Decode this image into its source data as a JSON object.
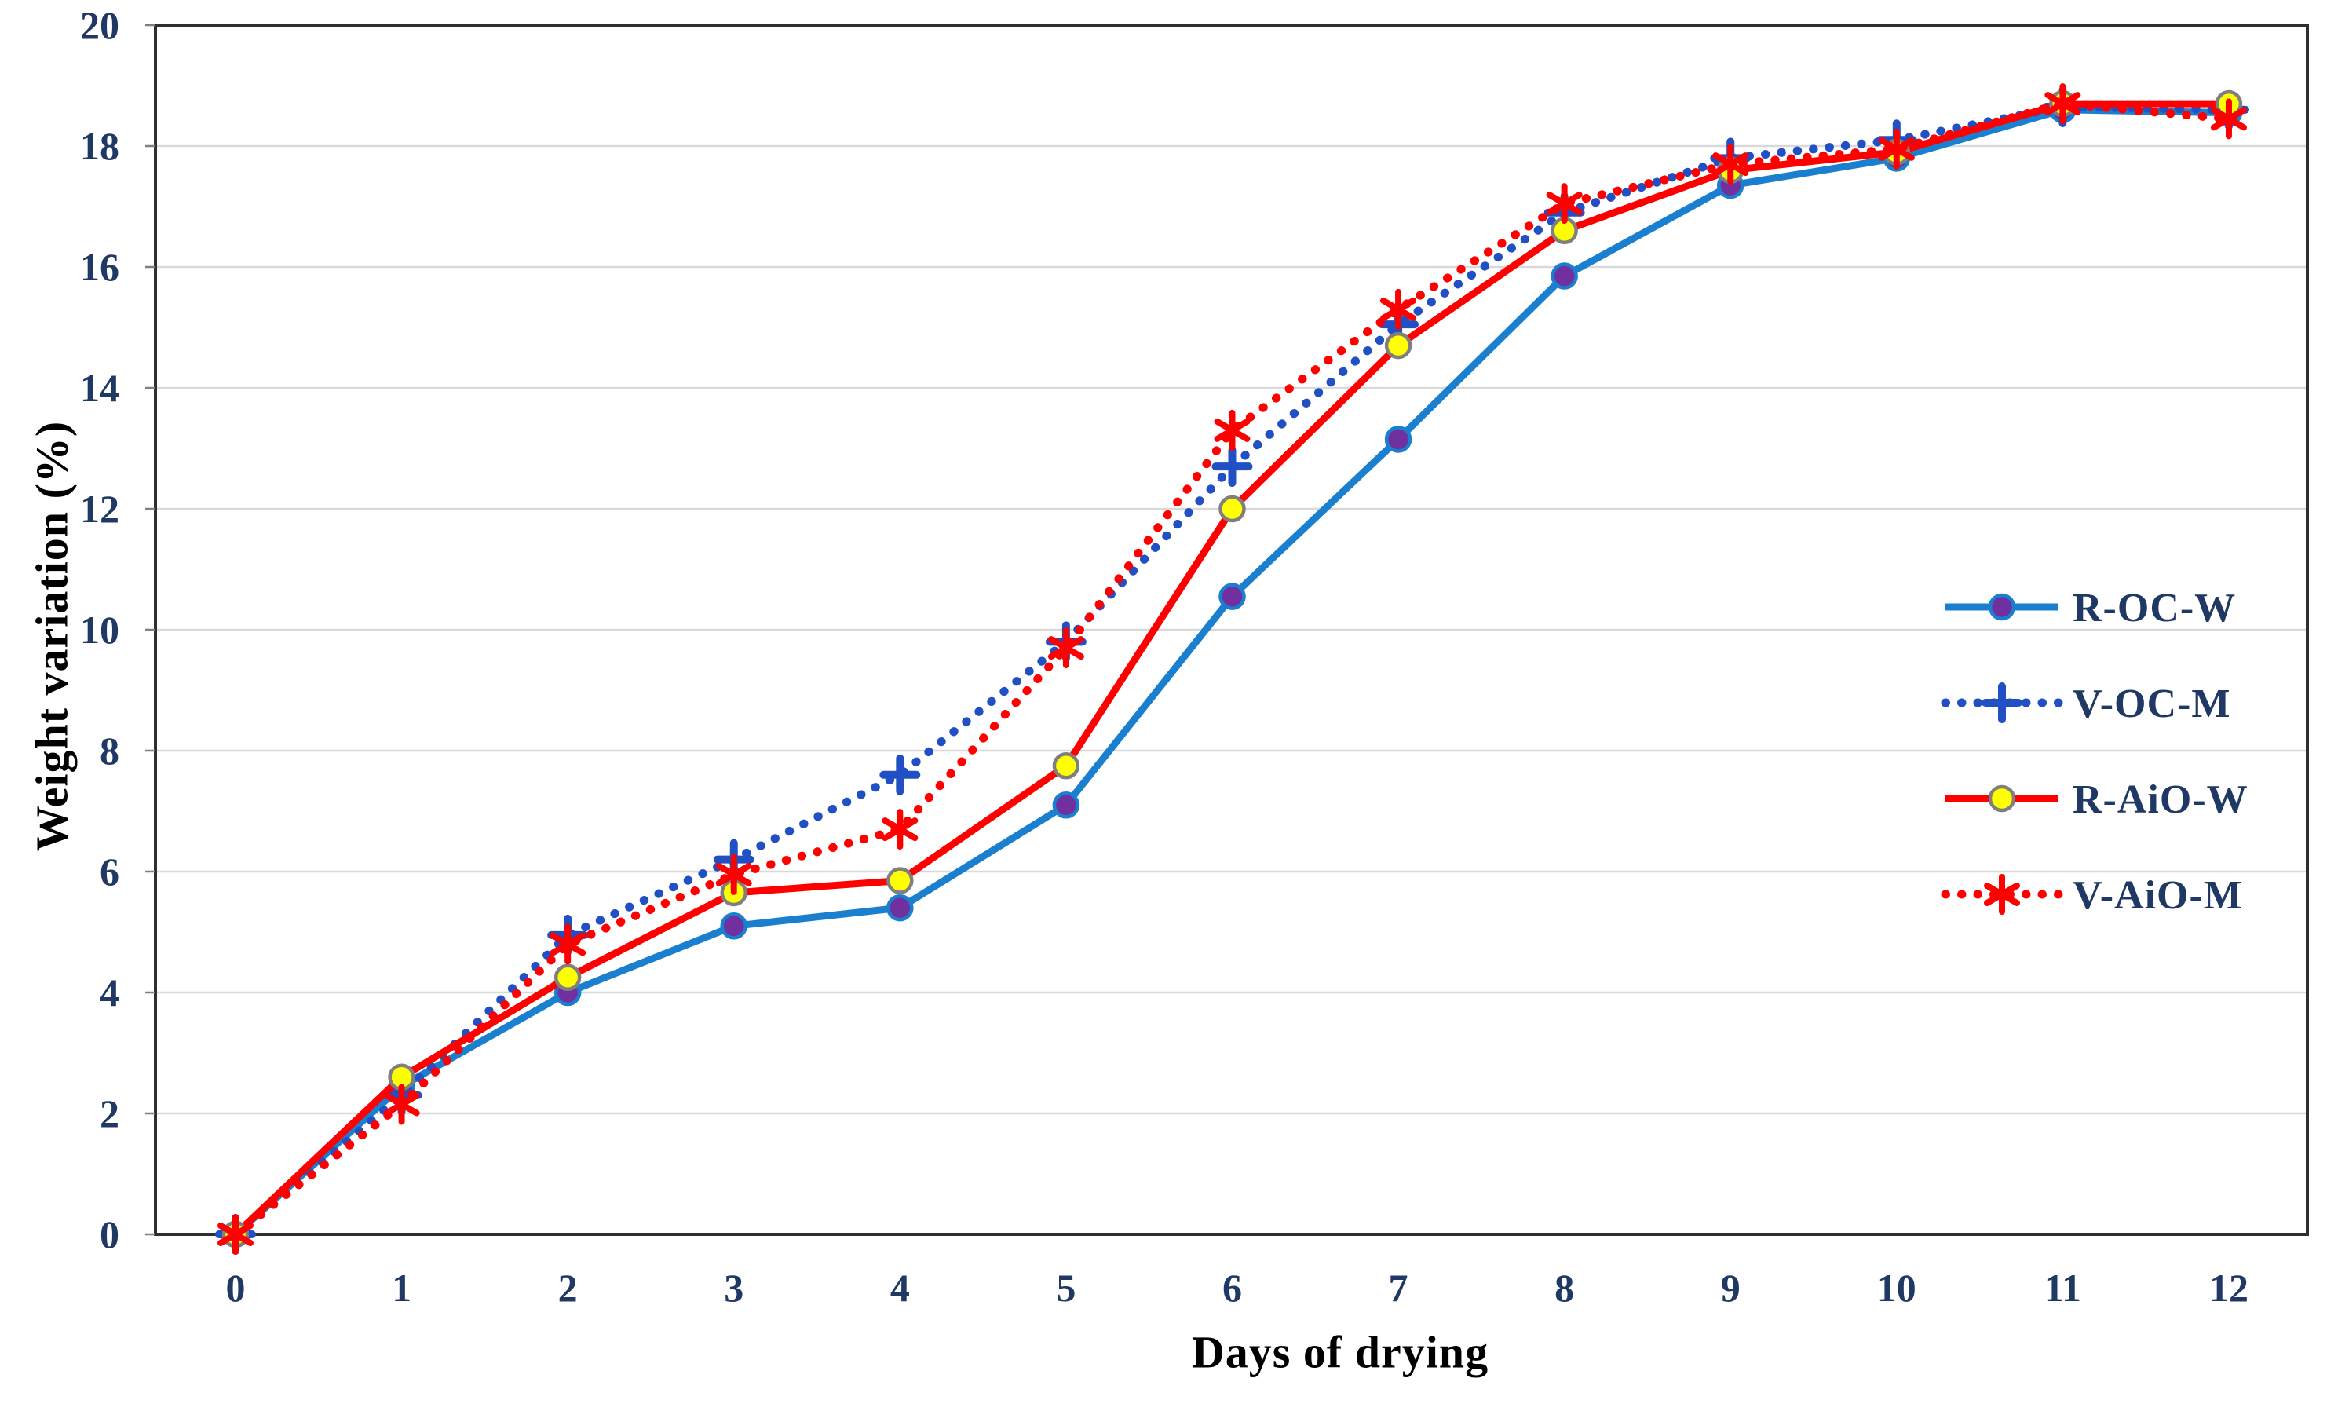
{
  "chart_data": {
    "type": "line",
    "title": "",
    "xlabel": "Days of drying",
    "ylabel": "Weight variation (%)",
    "x": [
      0,
      1,
      2,
      3,
      4,
      5,
      6,
      7,
      8,
      9,
      10,
      11,
      12
    ],
    "x_tick_labels": [
      "0",
      "1",
      "2",
      "3",
      "4",
      "5",
      "6",
      "7",
      "8",
      "9",
      "10",
      "11",
      "12"
    ],
    "y_ticks": [
      0,
      2,
      4,
      6,
      8,
      10,
      12,
      14,
      16,
      18,
      20
    ],
    "ylim": [
      0,
      20
    ],
    "grid": "horizontal",
    "legend_position": "right-middle",
    "colors": {
      "gridline": "#D9D9D9",
      "plot_border": "#2E2E2E",
      "axis_tick": "#7F7F7F",
      "text": "#1F3864"
    },
    "series": [
      {
        "name": "R-OC-W",
        "line_style": "solid",
        "line_color": "#1B7FD0",
        "marker": "circle",
        "marker_fill": "#7030A0",
        "marker_stroke": "#1B7FD0",
        "values": [
          0,
          2.45,
          4.0,
          5.1,
          5.4,
          7.1,
          10.55,
          13.15,
          15.85,
          17.35,
          17.8,
          18.6,
          18.55
        ]
      },
      {
        "name": "V-OC-M",
        "line_style": "dotted",
        "line_color": "#2050C4",
        "marker": "plus",
        "marker_fill": "#2050C4",
        "marker_stroke": "#2050C4",
        "values": [
          0,
          2.3,
          4.95,
          6.2,
          7.6,
          9.8,
          12.7,
          15.05,
          16.9,
          17.8,
          18.1,
          18.65,
          18.6
        ]
      },
      {
        "name": "R-AiO-W",
        "line_style": "solid",
        "line_color": "#FF0000",
        "marker": "circle",
        "marker_fill": "#FFFF00",
        "marker_stroke": "#7F7F7F",
        "values": [
          0,
          2.6,
          4.25,
          5.65,
          5.85,
          7.75,
          12.0,
          14.7,
          16.6,
          17.6,
          17.9,
          18.7,
          18.7
        ]
      },
      {
        "name": "V-AiO-M",
        "line_style": "dotted",
        "line_color": "#FF0000",
        "marker": "asterisk",
        "marker_fill": "#FF0000",
        "marker_stroke": "#FF0000",
        "values": [
          0,
          2.15,
          4.8,
          5.95,
          6.7,
          9.7,
          13.3,
          15.3,
          17.05,
          17.7,
          17.95,
          18.7,
          18.45
        ]
      }
    ]
  }
}
